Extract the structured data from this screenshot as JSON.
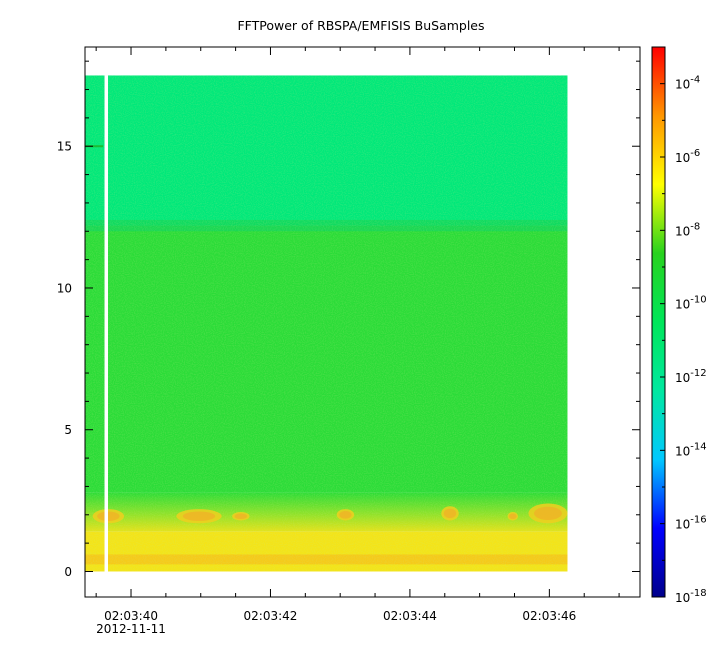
{
  "chart_data": {
    "type": "heatmap",
    "title": "FFTPower of RBSPA/EMFISIS  BuSamples",
    "xlabel": "",
    "ylabel": "",
    "x_ticks": [
      {
        "value": 40,
        "label": "02:03:40",
        "sublabel": "2012-11-11"
      },
      {
        "value": 42,
        "label": "02:03:42"
      },
      {
        "value": 44,
        "label": "02:03:44"
      },
      {
        "value": 46,
        "label": "02:03:46"
      }
    ],
    "x_range_seconds": [
      39.34,
      47.3
    ],
    "y_ticks": [
      0,
      5,
      10,
      15
    ],
    "y_range": [
      -0.9,
      18.5
    ],
    "data_extent": {
      "x": [
        39.34,
        46.26
      ],
      "y": [
        0,
        17.5
      ]
    },
    "data_gap": {
      "x": [
        39.62,
        39.67
      ]
    },
    "colorbar": {
      "scale": "log",
      "range": [
        1e-18,
        0.001
      ],
      "tick_exponents": [
        -4,
        -6,
        -8,
        -10,
        -12,
        -14,
        -16,
        -18
      ],
      "tick_base": "10",
      "colors": [
        "#00008b",
        "#0000ff",
        "#00c8ff",
        "#00e8a0",
        "#00e65a",
        "#28d21e",
        "#ffff00",
        "#ff9600",
        "#ff0000"
      ]
    },
    "spectrogram_features": [
      {
        "kind": "band",
        "y_from": 12.2,
        "y_to": 17.5,
        "level_exponent": -12.5,
        "color": "#00e87a"
      },
      {
        "kind": "band",
        "y_from": 2.8,
        "y_to": 12.2,
        "level_exponent": -10.8,
        "color": "#2bdc38"
      },
      {
        "kind": "band",
        "y_from": 0,
        "y_to": 1.4,
        "level_exponent": -8.5,
        "color": "#f4e418"
      },
      {
        "kind": "line",
        "y": 15.0,
        "x_from": 39.34,
        "x_to": 39.6,
        "level_exponent": -10,
        "color": "#1cbd32"
      },
      {
        "kind": "blob",
        "x_from": 39.45,
        "x_to": 39.9,
        "y_from": 1.7,
        "y_to": 2.2
      },
      {
        "kind": "blob",
        "x_from": 40.65,
        "x_to": 41.3,
        "y_from": 1.7,
        "y_to": 2.2
      },
      {
        "kind": "blob",
        "x_from": 41.45,
        "x_to": 41.7,
        "y_from": 1.8,
        "y_to": 2.1
      },
      {
        "kind": "blob",
        "x_from": 42.95,
        "x_to": 43.2,
        "y_from": 1.8,
        "y_to": 2.2
      },
      {
        "kind": "blob",
        "x_from": 44.45,
        "x_to": 44.7,
        "y_from": 1.8,
        "y_to": 2.3
      },
      {
        "kind": "blob",
        "x_from": 45.4,
        "x_to": 45.55,
        "y_from": 1.8,
        "y_to": 2.1
      },
      {
        "kind": "blob",
        "x_from": 45.7,
        "x_to": 46.26,
        "y_from": 1.7,
        "y_to": 2.4
      }
    ]
  }
}
